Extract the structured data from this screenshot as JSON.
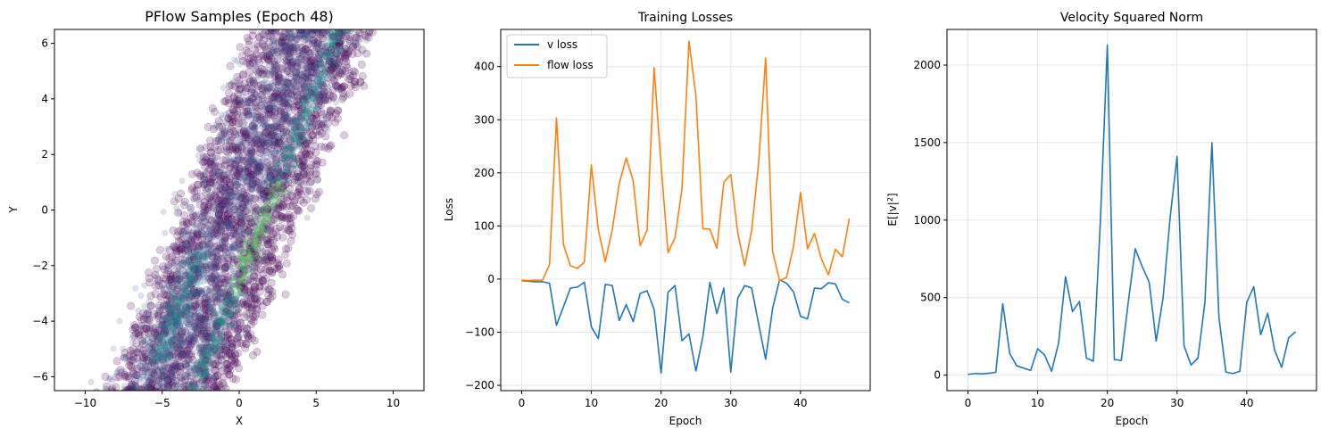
{
  "chart_data": [
    {
      "type": "scatter",
      "title": "PFlow Samples (Epoch 48)",
      "xlabel": "X",
      "ylabel": "Y",
      "xlim": [
        -12,
        12
      ],
      "ylim": [
        -6.5,
        6.5
      ],
      "x_ticks": [
        -10,
        -5,
        0,
        5,
        10
      ],
      "y_ticks": [
        -6,
        -4,
        -2,
        0,
        2,
        4,
        6
      ],
      "grid": false,
      "colormap": [
        "#440154",
        "#3b528b",
        "#21918c",
        "#5ec962"
      ],
      "band": {
        "slope_per_y": 0.72,
        "center_offset_x": 0.2,
        "left_edge_offset_x": -3.6,
        "right_edge_offset_x": 3.4,
        "dense_ridge_offset_x": 1.8
      }
    },
    {
      "type": "line",
      "title": "Training Losses",
      "xlabel": "Epoch",
      "ylabel": "Loss",
      "xlim": [
        -3,
        50
      ],
      "ylim": [
        -210,
        470
      ],
      "x_ticks": [
        0,
        10,
        20,
        30,
        40
      ],
      "y_ticks": [
        -200,
        -100,
        0,
        100,
        200,
        300,
        400
      ],
      "grid": true,
      "legend_position": "top-left",
      "x": [
        0,
        1,
        2,
        3,
        4,
        5,
        6,
        7,
        8,
        9,
        10,
        11,
        12,
        13,
        14,
        15,
        16,
        17,
        18,
        19,
        20,
        21,
        22,
        23,
        24,
        25,
        26,
        27,
        28,
        29,
        30,
        31,
        32,
        33,
        34,
        35,
        36,
        37,
        38,
        39,
        40,
        41,
        42,
        43,
        44,
        45,
        46,
        47
      ],
      "series": [
        {
          "name": "v loss",
          "color": "#1f77b4",
          "values": [
            -3,
            -4,
            -5,
            -5,
            -8,
            -87,
            -52,
            -17,
            -15,
            -6,
            -90,
            -112,
            -10,
            -12,
            -78,
            -48,
            -80,
            -27,
            -22,
            -57,
            -177,
            -25,
            -12,
            -116,
            -103,
            -173,
            -108,
            -6,
            -65,
            -17,
            -175,
            -36,
            -12,
            -17,
            -85,
            -151,
            -55,
            -1,
            -8,
            -24,
            -70,
            -75,
            -17,
            -18,
            -7,
            -9,
            -38,
            -45
          ]
        },
        {
          "name": "flow loss",
          "color": "#ff7f0e",
          "values": [
            -2,
            -3,
            -2,
            -2,
            27,
            303,
            65,
            25,
            20,
            32,
            215,
            93,
            33,
            93,
            180,
            228,
            185,
            63,
            92,
            398,
            215,
            50,
            78,
            170,
            448,
            345,
            95,
            94,
            58,
            182,
            197,
            87,
            25,
            92,
            220,
            416,
            52,
            -3,
            3,
            62,
            163,
            57,
            86,
            38,
            8,
            56,
            42,
            114
          ]
        }
      ]
    },
    {
      "type": "line",
      "title": "Velocity Squared Norm",
      "xlabel": "Epoch",
      "ylabel": "E[|v|²]",
      "ylabel_main": "E[|v|",
      "ylabel_sup": "2",
      "ylabel_end": "]",
      "xlim": [
        -3,
        50
      ],
      "ylim": [
        -100,
        2230
      ],
      "x_ticks": [
        0,
        10,
        20,
        30,
        40
      ],
      "y_ticks": [
        0,
        500,
        1000,
        1500,
        2000
      ],
      "grid": true,
      "x": [
        0,
        1,
        2,
        3,
        4,
        5,
        6,
        7,
        8,
        9,
        10,
        11,
        12,
        13,
        14,
        15,
        16,
        17,
        18,
        19,
        20,
        21,
        22,
        23,
        24,
        25,
        26,
        27,
        28,
        29,
        30,
        31,
        32,
        33,
        34,
        35,
        36,
        37,
        38,
        39,
        40,
        41,
        42,
        43,
        44,
        45,
        46,
        47
      ],
      "series": [
        {
          "name": "",
          "color": "#1f77b4",
          "values": [
            5,
            10,
            8,
            12,
            18,
            460,
            140,
            60,
            45,
            30,
            170,
            130,
            25,
            205,
            635,
            410,
            475,
            110,
            90,
            990,
            2130,
            100,
            95,
            470,
            815,
            700,
            600,
            220,
            500,
            1015,
            1410,
            190,
            65,
            110,
            470,
            1500,
            375,
            20,
            10,
            25,
            470,
            570,
            260,
            400,
            160,
            50,
            240,
            280
          ]
        }
      ]
    }
  ]
}
